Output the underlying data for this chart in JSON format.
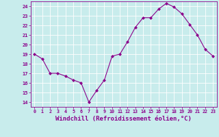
{
  "x": [
    0,
    1,
    2,
    3,
    4,
    5,
    6,
    7,
    8,
    9,
    10,
    11,
    12,
    13,
    14,
    15,
    16,
    17,
    18,
    19,
    20,
    21,
    22,
    23
  ],
  "y": [
    19,
    18.5,
    17,
    17,
    16.7,
    16.3,
    16,
    14,
    15.2,
    16.3,
    18.8,
    19,
    20.3,
    21.8,
    22.8,
    22.8,
    23.7,
    24.3,
    23.9,
    23.2,
    22.1,
    21.0,
    19.5,
    18.8
  ],
  "line_color": "#8B008B",
  "marker": "D",
  "marker_size": 2,
  "bg_color": "#c8ecec",
  "grid_color": "#aadddd",
  "xlabel": "Windchill (Refroidissement éolien,°C)",
  "xlabel_fontsize": 6.5,
  "tick_label_color": "#8B008B",
  "axis_label_color": "#8B008B",
  "ylim": [
    13.5,
    24.5
  ],
  "xlim": [
    -0.5,
    23.5
  ],
  "yticks": [
    14,
    15,
    16,
    17,
    18,
    19,
    20,
    21,
    22,
    23,
    24
  ],
  "xticks": [
    0,
    1,
    2,
    3,
    4,
    5,
    6,
    7,
    8,
    9,
    10,
    11,
    12,
    13,
    14,
    15,
    16,
    17,
    18,
    19,
    20,
    21,
    22,
    23
  ],
  "spine_color": "#8B008B",
  "tick_color": "#8B008B"
}
